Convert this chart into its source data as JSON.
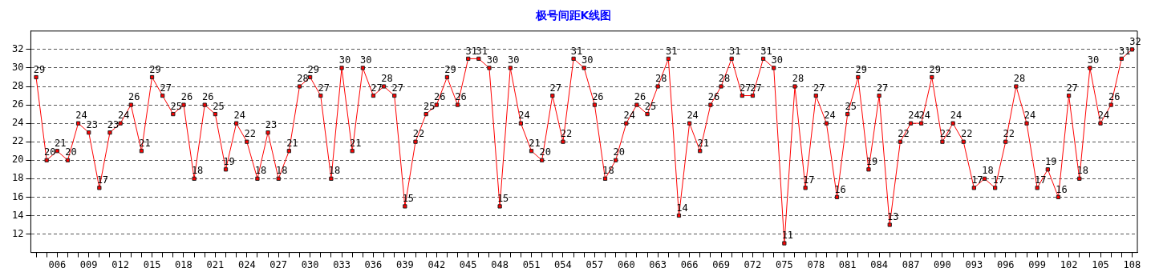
{
  "chart_data": {
    "type": "line",
    "title": "极号间距K线图",
    "categories": [
      null,
      null,
      "006",
      null,
      null,
      "009",
      null,
      null,
      "012",
      null,
      null,
      "015",
      null,
      null,
      "018",
      null,
      null,
      "021",
      null,
      null,
      "024",
      null,
      null,
      "027",
      null,
      null,
      "030",
      null,
      null,
      "033",
      null,
      null,
      "036",
      null,
      null,
      "039",
      null,
      null,
      "042",
      null,
      null,
      "045",
      null,
      null,
      "048",
      null,
      null,
      "051",
      null,
      null,
      "054",
      null,
      null,
      "057",
      null,
      null,
      "060",
      null,
      null,
      "063",
      null,
      null,
      "066",
      null,
      null,
      "069",
      null,
      null,
      "072",
      null,
      null,
      "075",
      null,
      null,
      "078",
      null,
      null,
      "081",
      null,
      null,
      "084",
      null,
      null,
      "087",
      null,
      null,
      "090",
      null,
      null,
      "093",
      null,
      null,
      "096",
      null,
      null,
      "099",
      null,
      null,
      "102",
      null,
      null,
      "105",
      null,
      null,
      "108"
    ],
    "series": [
      {
        "color": "#ff0000",
        "values": [
          29,
          20,
          21,
          20,
          24,
          23,
          17,
          23,
          24,
          26,
          21,
          29,
          27,
          25,
          26,
          18,
          26,
          25,
          19,
          24,
          22,
          18,
          23,
          18,
          21,
          28,
          29,
          27,
          18,
          30,
          21,
          30,
          27,
          28,
          27,
          15,
          22,
          25,
          26,
          29,
          26,
          31,
          31,
          30,
          15,
          30,
          24,
          21,
          20,
          27,
          22,
          31,
          30,
          26,
          18,
          20,
          24,
          26,
          25,
          28,
          31,
          14,
          24,
          21,
          26,
          28,
          31,
          27,
          27,
          31,
          30,
          11,
          28,
          17,
          27,
          24,
          16,
          25,
          29,
          19,
          27,
          13,
          22,
          24,
          24,
          29,
          22,
          24,
          22,
          17,
          18,
          17,
          22,
          28,
          24,
          17,
          19,
          16,
          27,
          18,
          30,
          24,
          26,
          31,
          32
        ]
      }
    ],
    "ylim": [
      10,
      34
    ],
    "yticks": [
      12,
      14,
      16,
      18,
      20,
      22,
      24,
      26,
      28,
      30,
      32
    ],
    "grid": "y",
    "legend": false,
    "marker": "square",
    "line_style": "solid",
    "data_labels": true
  }
}
